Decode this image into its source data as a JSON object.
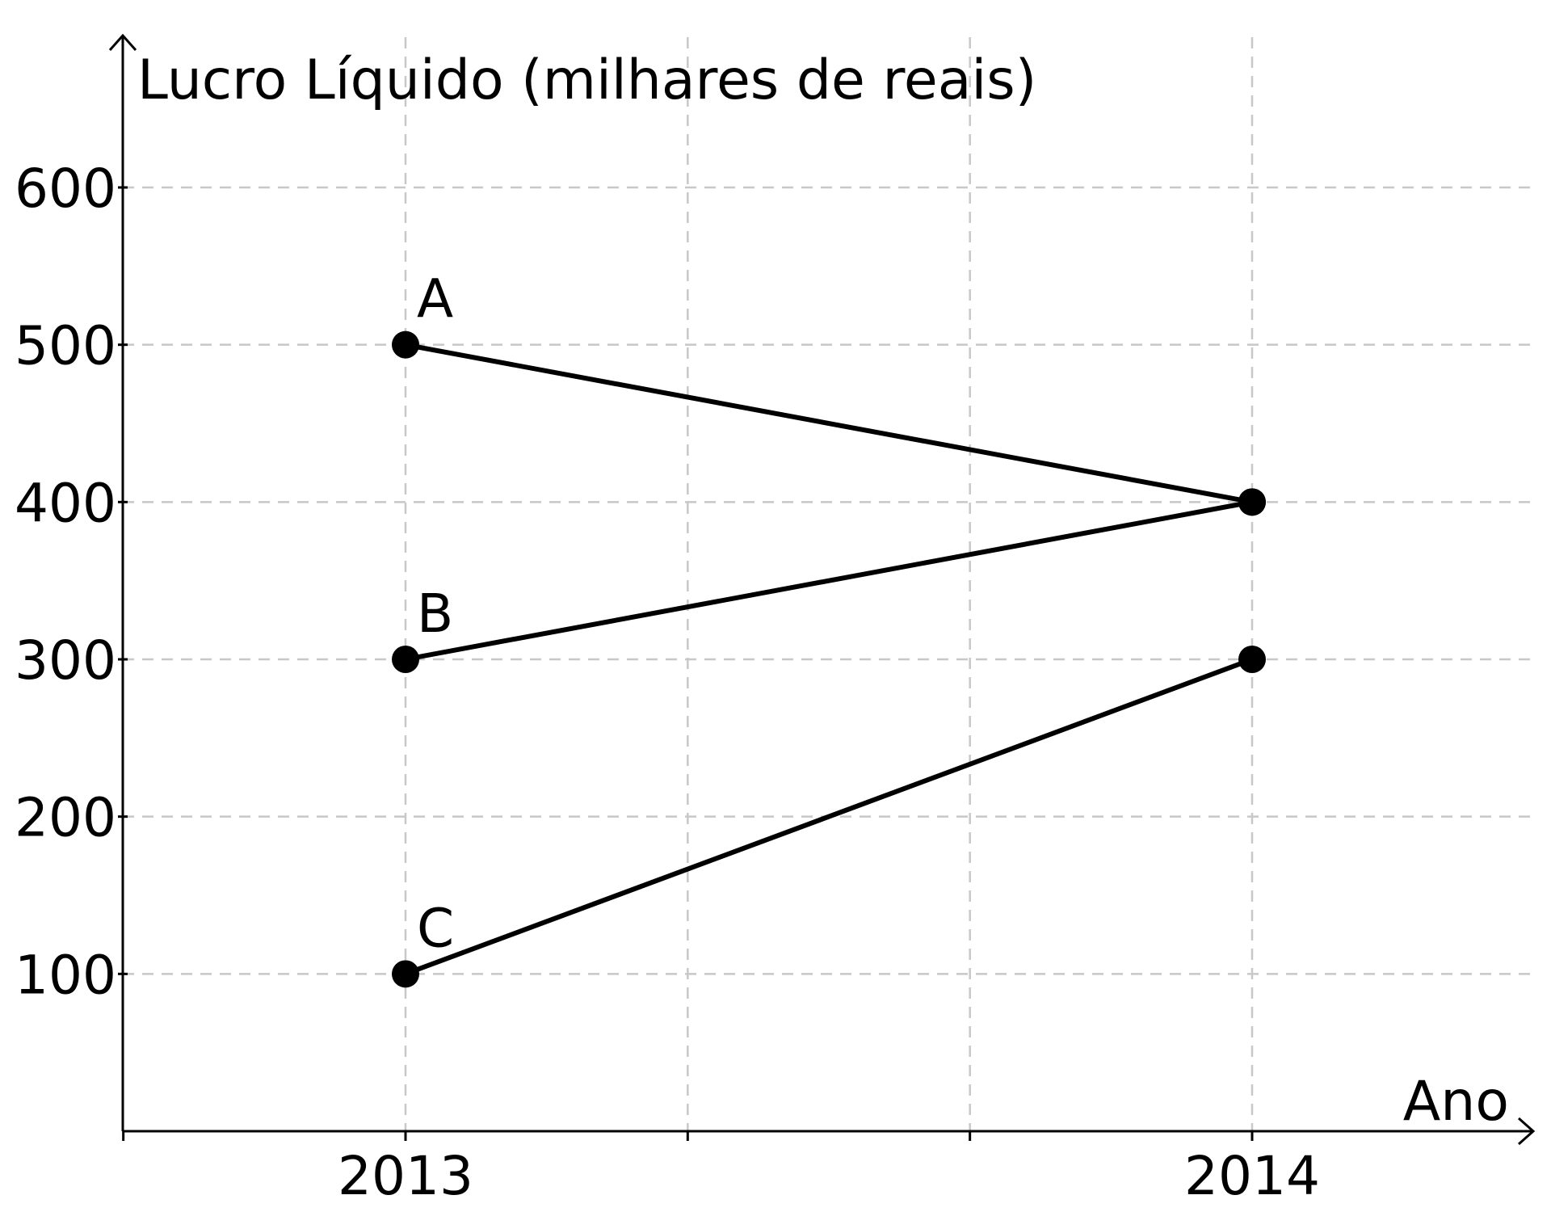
{
  "chart_data": {
    "type": "line",
    "title": "",
    "ylabel": "Lucro Líquido (milhares de reais)",
    "xlabel": "Ano",
    "x_ticks": [
      "2013",
      "2014"
    ],
    "y_ticks": [
      100,
      200,
      300,
      400,
      500,
      600
    ],
    "xlim": [
      2012.67,
      2014.33
    ],
    "ylim": [
      0,
      650
    ],
    "grid": true,
    "grid_x_minor_step": 0.333,
    "series": [
      {
        "name": "A",
        "x": [
          2013,
          2014
        ],
        "y": [
          500,
          400
        ]
      },
      {
        "name": "B",
        "x": [
          2013,
          2014
        ],
        "y": [
          300,
          400
        ]
      },
      {
        "name": "C",
        "x": [
          2013,
          2014
        ],
        "y": [
          100,
          300
        ]
      }
    ],
    "colors": {
      "line": "#000000",
      "grid": "#c8c8c8",
      "axis": "#000000"
    }
  }
}
